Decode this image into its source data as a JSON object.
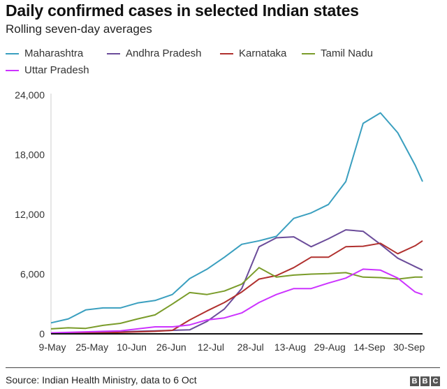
{
  "chart_data": {
    "type": "line",
    "title": "Daily confirmed cases in selected Indian states",
    "subtitle": "Rolling seven-day averages",
    "xlabel": "",
    "ylabel": "",
    "ylim": [
      0,
      24000
    ],
    "yticks": [
      0,
      6000,
      12000,
      18000,
      24000
    ],
    "ytick_labels": [
      "0",
      "6,000",
      "12,000",
      "18,000",
      "24,000"
    ],
    "xticks": [
      "9-May",
      "25-May",
      "10-Jun",
      "26-Jun",
      "12-Jul",
      "28-Jul",
      "13-Aug",
      "29-Aug",
      "14-Sep",
      "30-Sep"
    ],
    "grid": false,
    "legend": "top",
    "x": [
      "9-May",
      "16-May",
      "23-May",
      "30-May",
      "6-Jun",
      "13-Jun",
      "20-Jun",
      "27-Jun",
      "4-Jul",
      "11-Jul",
      "18-Jul",
      "25-Jul",
      "1-Aug",
      "8-Aug",
      "15-Aug",
      "22-Aug",
      "29-Aug",
      "5-Sep",
      "12-Sep",
      "19-Sep",
      "26-Sep",
      "3-Oct",
      "6-Oct"
    ],
    "series": [
      {
        "name": "Maharashtra",
        "color": "#3a9fbf",
        "values": [
          1100,
          1500,
          2400,
          2600,
          2600,
          3100,
          3350,
          3950,
          5550,
          6500,
          7700,
          9000,
          9350,
          9800,
          11600,
          12150,
          13000,
          15300,
          21150,
          22200,
          20200,
          16950,
          15300
        ]
      },
      {
        "name": "Andhra Pradesh",
        "color": "#6b4c9a",
        "values": [
          50,
          80,
          100,
          150,
          200,
          250,
          300,
          350,
          400,
          1250,
          2500,
          4550,
          8750,
          9650,
          9750,
          8750,
          9550,
          10450,
          10300,
          9000,
          7600,
          6750,
          6400
        ]
      },
      {
        "name": "Karnataka",
        "color": "#b0302e",
        "values": [
          30,
          50,
          80,
          100,
          150,
          200,
          250,
          350,
          1400,
          2300,
          3150,
          4200,
          5500,
          5850,
          6650,
          7700,
          7700,
          8750,
          8800,
          9100,
          8050,
          8850,
          9350
        ]
      },
      {
        "name": "Tamil Nadu",
        "color": "#7a9c2a",
        "values": [
          500,
          600,
          550,
          850,
          1050,
          1500,
          1900,
          3000,
          4150,
          3950,
          4300,
          5000,
          6650,
          5700,
          5900,
          6000,
          6050,
          6150,
          5700,
          5650,
          5500,
          5700,
          5700
        ]
      },
      {
        "name": "Uttar Pradesh",
        "color": "#cc33ff",
        "values": [
          100,
          150,
          200,
          250,
          300,
          500,
          700,
          700,
          900,
          1400,
          1600,
          2100,
          3150,
          3950,
          4550,
          4550,
          5100,
          5600,
          6500,
          6400,
          5600,
          4200,
          3950
        ]
      }
    ]
  },
  "footer": {
    "source": "Source: Indian Health Ministry, data to 6 Oct",
    "logo": "BBC"
  }
}
